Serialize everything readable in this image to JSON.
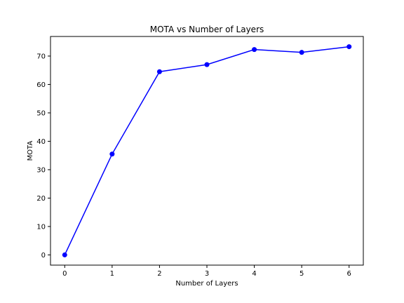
{
  "chart_data": {
    "type": "line",
    "title": "MOTA vs Number of Layers",
    "xlabel": "Number of Layers",
    "ylabel": "MOTA",
    "x": [
      0,
      1,
      2,
      3,
      4,
      5,
      6
    ],
    "series": [
      {
        "values": [
          0.0,
          35.5,
          64.5,
          67.0,
          72.3,
          71.3,
          73.3
        ],
        "color": "#0000ff",
        "marker": "circle"
      }
    ],
    "xlim": [
      -0.3,
      6.3
    ],
    "ylim": [
      -3.6,
      76.9
    ],
    "xticks": [
      0,
      1,
      2,
      3,
      4,
      5,
      6
    ],
    "yticks": [
      0,
      10,
      20,
      30,
      40,
      50,
      60,
      70
    ],
    "grid": false,
    "legend": "none"
  }
}
